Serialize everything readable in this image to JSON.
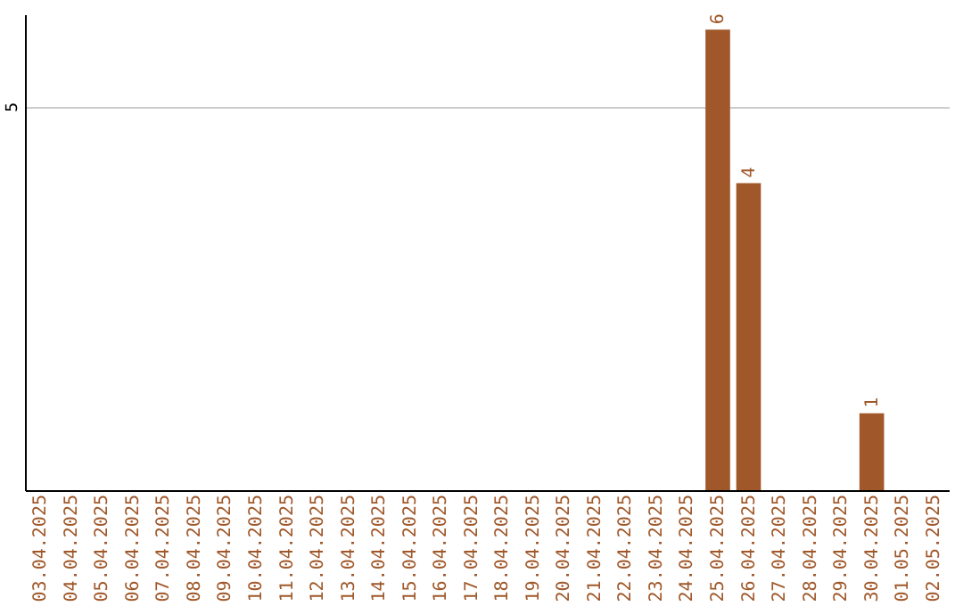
{
  "chart_data": {
    "type": "bar",
    "categories": [
      "03.04.2025",
      "04.04.2025",
      "05.04.2025",
      "06.04.2025",
      "07.04.2025",
      "08.04.2025",
      "09.04.2025",
      "10.04.2025",
      "11.04.2025",
      "12.04.2025",
      "13.04.2025",
      "14.04.2025",
      "15.04.2025",
      "16.04.2025",
      "17.04.2025",
      "18.04.2025",
      "19.04.2025",
      "20.04.2025",
      "21.04.2025",
      "22.04.2025",
      "23.04.2025",
      "24.04.2025",
      "25.04.2025",
      "26.04.2025",
      "27.04.2025",
      "28.04.2025",
      "29.04.2025",
      "30.04.2025",
      "01.05.2025",
      "02.05.2025"
    ],
    "values": [
      null,
      null,
      null,
      null,
      null,
      null,
      null,
      null,
      null,
      null,
      null,
      null,
      null,
      null,
      null,
      null,
      null,
      null,
      null,
      null,
      null,
      null,
      6,
      4,
      null,
      null,
      null,
      1,
      null,
      null
    ],
    "data_labels": true,
    "color": "#a0582a",
    "ylim": [
      0,
      6.2
    ],
    "yticks": [
      {
        "value": 0,
        "label": null
      },
      5
    ],
    "grid": "y"
  }
}
